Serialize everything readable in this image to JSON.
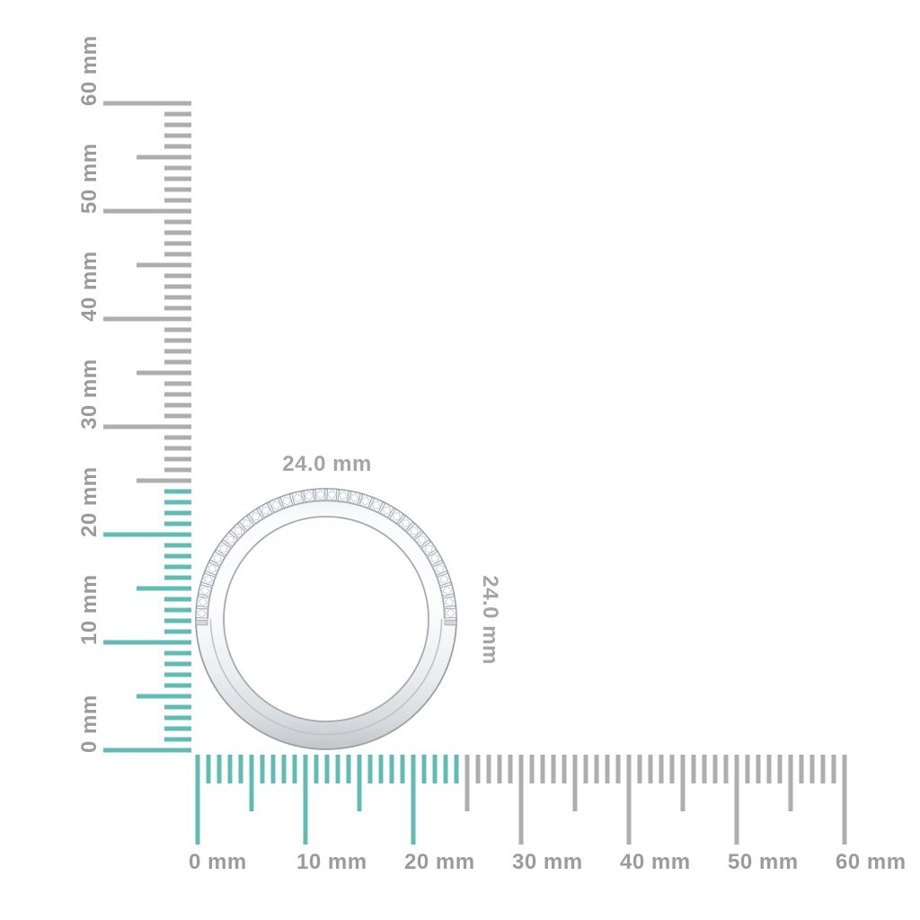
{
  "scene": {
    "background": "#ffffff",
    "description": "Side view of a white-metal band ring with a row of pave-set diamonds along the upper outer edge, measured against vertical and horizontal millimeter rulers"
  },
  "measurement": {
    "unit": "mm",
    "measured_mm": 24,
    "width_label": "24.0 mm",
    "height_label": "24.0 mm"
  },
  "rulers": {
    "unit": "mm",
    "min_mm": 0,
    "max_mm": 60,
    "minor_step_mm": 1,
    "mid_step_mm": 5,
    "major_step_mm": 10,
    "highlight_until_mm": 24,
    "colors": {
      "tick_gray": "#aeaeae",
      "highlight_teal": "#62bcb3",
      "label_gray": "#9b9b9b"
    },
    "vertical": {
      "labels": [
        "0 mm",
        "10 mm",
        "20 mm",
        "30 mm",
        "40 mm",
        "50 mm",
        "60 mm"
      ]
    },
    "horizontal": {
      "labels": [
        "0 mm",
        "10 mm",
        "20 mm",
        "30 mm",
        "40 mm",
        "50 mm",
        "60 mm"
      ]
    }
  },
  "ring": {
    "diamond_count": 34,
    "colors": {
      "metal_edge": "#9aa0a6",
      "metal_light": "#fbfcfd",
      "metal_mid": "#eceef0",
      "metal_dark": "#c2c6ca",
      "seam": "#bfc3c7",
      "rail": "#b2b7bd",
      "stone_fill": "#f2f4f7",
      "stone_stroke": "#9ea4ac",
      "stone_facet": "#c8cdd3",
      "end_cap": "#d3d7db"
    }
  }
}
